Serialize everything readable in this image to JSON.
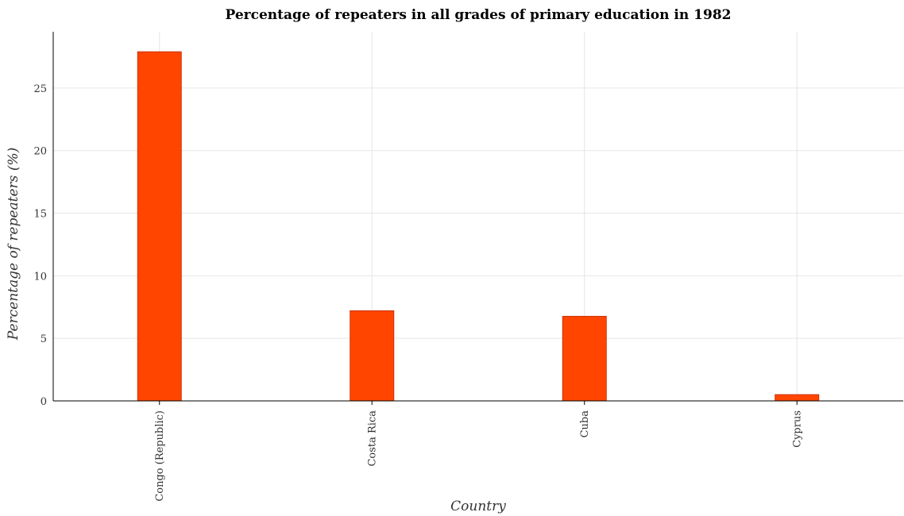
{
  "chart_data": {
    "type": "bar",
    "title": "Percentage of repeaters in all grades of primary education in 1982",
    "xlabel": "Country",
    "ylabel": "Percentage of repeaters (%)",
    "categories": [
      "Congo (Republic)",
      "Costa Rica",
      "Cuba",
      "Cyprus"
    ],
    "values": [
      27.9,
      7.2,
      6.76,
      0.5
    ],
    "ylim": [
      0,
      29.5
    ],
    "yticks": [
      0,
      5,
      10,
      15,
      20,
      25
    ],
    "grid": true,
    "bar_color": "#ff4500"
  }
}
